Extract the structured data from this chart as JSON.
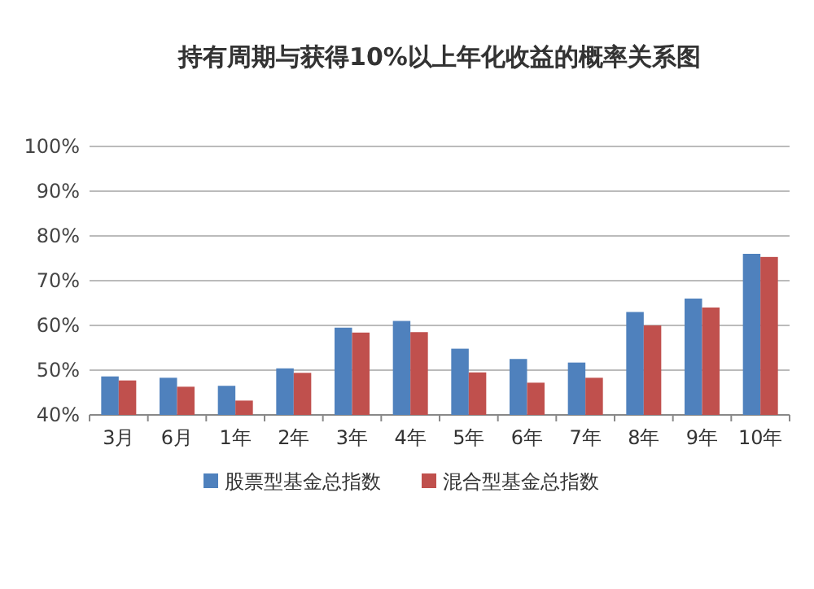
{
  "chart_data": {
    "type": "bar",
    "title": "持有周期与获得10%以上年化收益的概率关系图",
    "categories": [
      "3月",
      "6月",
      "1年",
      "2年",
      "3年",
      "4年",
      "5年",
      "6年",
      "7年",
      "8年",
      "9年",
      "10年"
    ],
    "series": [
      {
        "name": "股票型基金总指数",
        "color": "#4f81bd",
        "values": [
          48.6,
          48.3,
          46.5,
          50.4,
          59.5,
          61,
          54.8,
          52.5,
          51.7,
          63,
          66,
          76
        ]
      },
      {
        "name": "混合型基金总指数",
        "color": "#c0504d",
        "values": [
          47.7,
          46.3,
          43.2,
          49.4,
          58.4,
          58.5,
          49.5,
          47.2,
          48.3,
          60,
          64,
          75.3
        ]
      }
    ],
    "ylim": [
      40,
      100
    ],
    "yticks": [
      {
        "value": 40,
        "label": "40%"
      },
      {
        "value": 50,
        "label": "50%"
      },
      {
        "value": 60,
        "label": "60%"
      },
      {
        "value": 70,
        "label": "70%"
      },
      {
        "value": 80,
        "label": "80%"
      },
      {
        "value": 90,
        "label": "90%"
      },
      {
        "value": 100,
        "label": "100%"
      }
    ],
    "grid": "y",
    "legend": "bottom"
  }
}
